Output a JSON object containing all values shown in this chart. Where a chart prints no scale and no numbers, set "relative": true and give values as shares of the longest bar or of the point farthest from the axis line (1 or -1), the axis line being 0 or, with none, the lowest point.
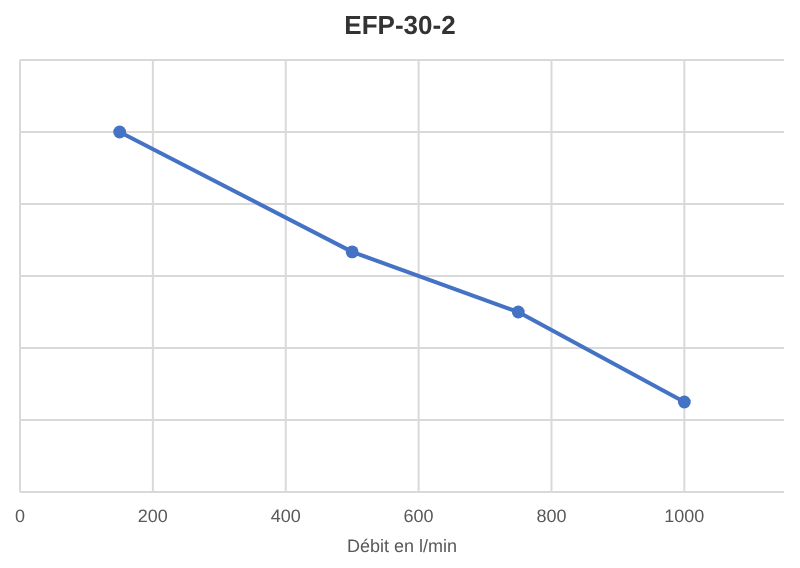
{
  "chart_data": {
    "type": "line",
    "title": "EFP-30-2",
    "xlabel": "Débit en l/min",
    "x": [
      150,
      500,
      750,
      1000
    ],
    "series": [
      {
        "color": "#4472c4",
        "values": [
          1,
          0.667,
          0.5,
          0.25
        ]
      }
    ],
    "relative": true,
    "xlim": [
      0,
      1150
    ],
    "xticks": [
      0,
      200,
      400,
      600,
      800,
      1000
    ],
    "grid": true,
    "marker": "circle",
    "tick_labels": "x"
  }
}
